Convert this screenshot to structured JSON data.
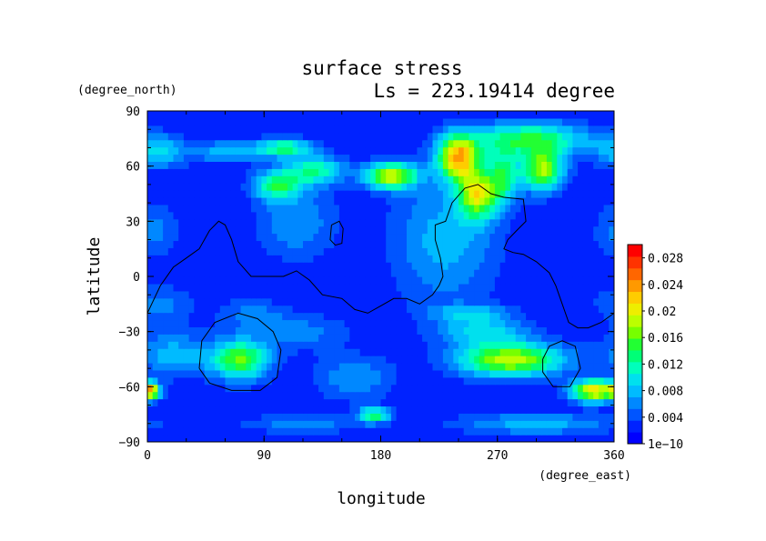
{
  "chart_data": {
    "type": "heatmap",
    "title": "surface stress",
    "subtitle": "Ls = 223.19414 degree",
    "xlabel": "longitude",
    "ylabel": "latitude",
    "x_unit": "(degree_east)",
    "y_unit": "(degree_north)",
    "xlim": [
      0,
      360
    ],
    "ylim": [
      -90,
      90
    ],
    "x_ticks": [
      "0",
      "90",
      "180",
      "270",
      "360"
    ],
    "y_ticks": [
      "90",
      "60",
      "30",
      "0",
      "−30",
      "−60",
      "−90"
    ],
    "colorbar": {
      "range": [
        0,
        0.03
      ],
      "tick_labels": [
        "0.028",
        "0.024",
        "0.02",
        "0.016",
        "0.012",
        "0.008",
        "0.004",
        "1e−10"
      ],
      "tick_values": [
        0.028,
        0.024,
        0.02,
        0.016,
        0.012,
        0.008,
        0.004,
        0
      ],
      "colors": [
        "#0000ff",
        "#0022ff",
        "#0055ff",
        "#0088ff",
        "#00bbff",
        "#00e0ee",
        "#00ffbb",
        "#00ff77",
        "#22ff33",
        "#77ff00",
        "#bbff00",
        "#eeee00",
        "#ffcc00",
        "#ff9900",
        "#ff6600",
        "#ff3300",
        "#ff0000"
      ]
    },
    "background_value": 0.002,
    "field_blobs": [
      {
        "lon": 8,
        "lat": 68,
        "rlon": 22,
        "rlat": 9,
        "amp": 0.007
      },
      {
        "lon": 60,
        "lat": 68,
        "rlon": 25,
        "rlat": 6,
        "amp": 0.006
      },
      {
        "lon": 105,
        "lat": 70,
        "rlon": 22,
        "rlat": 5,
        "amp": 0.011
      },
      {
        "lon": 130,
        "lat": 58,
        "rlon": 22,
        "rlat": 8,
        "amp": 0.01
      },
      {
        "lon": 100,
        "lat": 50,
        "rlon": 18,
        "rlat": 8,
        "amp": 0.011
      },
      {
        "lon": 188,
        "lat": 55,
        "rlon": 20,
        "rlat": 7,
        "amp": 0.017
      },
      {
        "lon": 240,
        "lat": 65,
        "rlon": 16,
        "rlat": 12,
        "amp": 0.02
      },
      {
        "lon": 255,
        "lat": 45,
        "rlon": 15,
        "rlat": 13,
        "amp": 0.016
      },
      {
        "lon": 295,
        "lat": 75,
        "rlon": 45,
        "rlat": 9,
        "amp": 0.012
      },
      {
        "lon": 305,
        "lat": 58,
        "rlon": 16,
        "rlat": 11,
        "amp": 0.016
      },
      {
        "lon": 275,
        "lat": 55,
        "rlon": 12,
        "rlat": 14,
        "amp": 0.01
      },
      {
        "lon": 115,
        "lat": 30,
        "rlon": 30,
        "rlat": 20,
        "amp": 0.005
      },
      {
        "lon": 230,
        "lat": 20,
        "rlon": 40,
        "rlat": 35,
        "amp": 0.006
      },
      {
        "lon": 5,
        "lat": 25,
        "rlon": 20,
        "rlat": 15,
        "amp": 0.004
      },
      {
        "lon": 10,
        "lat": -15,
        "rlon": 25,
        "rlat": 10,
        "amp": 0.004
      },
      {
        "lon": 80,
        "lat": -20,
        "rlon": 25,
        "rlat": 8,
        "amp": 0.004
      },
      {
        "lon": 120,
        "lat": -30,
        "rlon": 35,
        "rlat": 10,
        "amp": 0.004
      },
      {
        "lon": 20,
        "lat": -42,
        "rlon": 30,
        "rlat": 12,
        "amp": 0.006
      },
      {
        "lon": 72,
        "lat": -45,
        "rlon": 22,
        "rlat": 11,
        "amp": 0.014
      },
      {
        "lon": 160,
        "lat": -55,
        "rlon": 30,
        "rlat": 12,
        "amp": 0.005
      },
      {
        "lon": 175,
        "lat": -75,
        "rlon": 12,
        "rlat": 4,
        "amp": 0.012
      },
      {
        "lon": 280,
        "lat": -45,
        "rlon": 40,
        "rlat": 9,
        "amp": 0.017
      },
      {
        "lon": 260,
        "lat": -30,
        "rlon": 35,
        "rlat": 7,
        "amp": 0.007
      },
      {
        "lon": 250,
        "lat": -20,
        "rlon": 30,
        "rlat": 5,
        "amp": 0.006
      },
      {
        "lon": 345,
        "lat": -62,
        "rlon": 18,
        "rlat": 6,
        "amp": 0.019
      },
      {
        "lon": 3,
        "lat": -62,
        "rlon": 6,
        "rlat": 4,
        "amp": 0.016
      },
      {
        "lon": 300,
        "lat": -80,
        "rlon": 60,
        "rlat": 6,
        "amp": 0.006
      },
      {
        "lon": 120,
        "lat": -80,
        "rlon": 50,
        "rlat": 5,
        "amp": 0.004
      }
    ],
    "contours": [
      {
        "name": "dichotomy-boundary",
        "points": [
          [
            0,
            -20
          ],
          [
            10,
            -5
          ],
          [
            20,
            5
          ],
          [
            30,
            10
          ],
          [
            40,
            15
          ],
          [
            48,
            25
          ],
          [
            55,
            30
          ],
          [
            60,
            28
          ],
          [
            65,
            20
          ],
          [
            70,
            8
          ],
          [
            80,
            0
          ],
          [
            95,
            0
          ],
          [
            105,
            0
          ],
          [
            115,
            3
          ],
          [
            125,
            -2
          ],
          [
            135,
            -10
          ],
          [
            150,
            -12
          ],
          [
            160,
            -18
          ],
          [
            170,
            -20
          ],
          [
            180,
            -16
          ],
          [
            190,
            -12
          ],
          [
            200,
            -12
          ],
          [
            210,
            -15
          ],
          [
            220,
            -10
          ],
          [
            225,
            -5
          ],
          [
            228,
            0
          ],
          [
            226,
            10
          ],
          [
            222,
            20
          ],
          [
            222,
            28
          ],
          [
            230,
            30
          ],
          [
            235,
            40
          ],
          [
            245,
            48
          ],
          [
            255,
            50
          ],
          [
            265,
            45
          ],
          [
            275,
            43
          ],
          [
            290,
            42
          ],
          [
            292,
            30
          ],
          [
            285,
            25
          ],
          [
            278,
            20
          ],
          [
            275,
            15
          ],
          [
            282,
            13
          ],
          [
            290,
            12
          ],
          [
            300,
            8
          ],
          [
            310,
            2
          ],
          [
            315,
            -5
          ],
          [
            320,
            -15
          ],
          [
            325,
            -25
          ],
          [
            332,
            -28
          ],
          [
            340,
            -28
          ],
          [
            350,
            -25
          ],
          [
            360,
            -20
          ]
        ]
      },
      {
        "name": "tharsis-island",
        "points": [
          [
            142,
            28
          ],
          [
            148,
            30
          ],
          [
            151,
            26
          ],
          [
            150,
            18
          ],
          [
            145,
            17
          ],
          [
            141,
            20
          ],
          [
            142,
            28
          ]
        ]
      },
      {
        "name": "hellas-basin",
        "points": [
          [
            40,
            -50
          ],
          [
            42,
            -35
          ],
          [
            52,
            -25
          ],
          [
            70,
            -20
          ],
          [
            85,
            -23
          ],
          [
            97,
            -30
          ],
          [
            103,
            -40
          ],
          [
            100,
            -55
          ],
          [
            87,
            -62
          ],
          [
            65,
            -62
          ],
          [
            48,
            -58
          ],
          [
            40,
            -50
          ]
        ]
      },
      {
        "name": "argyre-basin",
        "points": [
          [
            305,
            -45
          ],
          [
            310,
            -38
          ],
          [
            320,
            -35
          ],
          [
            330,
            -38
          ],
          [
            334,
            -50
          ],
          [
            326,
            -60
          ],
          [
            313,
            -60
          ],
          [
            305,
            -52
          ],
          [
            305,
            -45
          ]
        ]
      }
    ]
  }
}
